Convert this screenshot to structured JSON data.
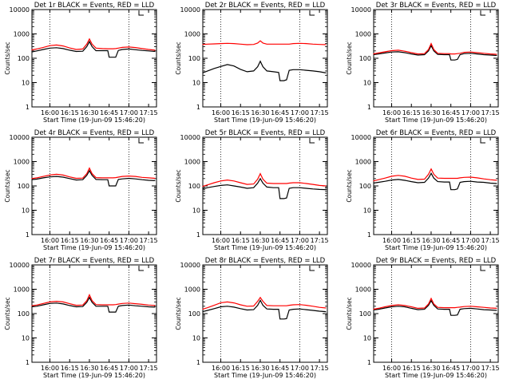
{
  "figure": {
    "ylabel": "Counts/sec",
    "xlabel": "Start Time (19-Jun-09 15:46:20)",
    "x_ticks": [
      "16:00",
      "16:15",
      "16:30",
      "16:45",
      "17:00",
      "17:15"
    ],
    "y_ticks": [
      "1",
      "10",
      "100",
      "1000",
      "10000"
    ],
    "ylim": [
      1,
      10000
    ],
    "y_scale": "log",
    "colors": {
      "events": "#000000",
      "lld": "#ff0000"
    }
  },
  "chart_data": [
    {
      "type": "line",
      "title": "Det 1r BLACK = Events, RED = LLD",
      "x": [
        "15:46",
        "15:50",
        "15:55",
        "16:00",
        "16:05",
        "16:10",
        "16:15",
        "16:20",
        "16:25",
        "16:28",
        "16:30",
        "16:32",
        "16:35",
        "16:40",
        "16:44",
        "16:45",
        "16:48",
        "16:50",
        "16:52",
        "16:55",
        "17:00",
        "17:05",
        "17:10",
        "17:15",
        "17:20"
      ],
      "series": [
        {
          "name": "Events",
          "values": [
            180,
            200,
            230,
            260,
            270,
            250,
            215,
            190,
            195,
            300,
            480,
            300,
            205,
            205,
            205,
            110,
            110,
            110,
            210,
            230,
            240,
            225,
            210,
            200,
            190
          ]
        },
        {
          "name": "LLD",
          "values": [
            220,
            240,
            280,
            330,
            350,
            320,
            265,
            230,
            240,
            380,
            620,
            380,
            260,
            250,
            245,
            245,
            245,
            250,
            260,
            280,
            290,
            275,
            250,
            230,
            215
          ]
        }
      ]
    },
    {
      "type": "line",
      "title": "Det 2r BLACK = Events, RED = LLD",
      "x": [
        "15:46",
        "15:50",
        "15:55",
        "16:00",
        "16:05",
        "16:10",
        "16:15",
        "16:20",
        "16:25",
        "16:28",
        "16:30",
        "16:32",
        "16:35",
        "16:40",
        "16:44",
        "16:45",
        "16:48",
        "16:50",
        "16:52",
        "16:55",
        "17:00",
        "17:05",
        "17:10",
        "17:15",
        "17:20"
      ],
      "series": [
        {
          "name": "Events",
          "values": [
            25,
            30,
            38,
            46,
            55,
            48,
            35,
            28,
            30,
            45,
            75,
            45,
            30,
            28,
            26,
            12,
            12,
            13,
            32,
            34,
            34,
            32,
            30,
            28,
            25
          ]
        },
        {
          "name": "LLD",
          "values": [
            370,
            380,
            390,
            400,
            410,
            400,
            380,
            360,
            370,
            420,
            520,
            420,
            380,
            380,
            380,
            380,
            380,
            380,
            380,
            400,
            410,
            400,
            380,
            370,
            360
          ]
        }
      ]
    },
    {
      "type": "line",
      "title": "Det 3r BLACK = Events, RED = LLD",
      "x": [
        "15:46",
        "15:50",
        "15:55",
        "16:00",
        "16:05",
        "16:10",
        "16:15",
        "16:20",
        "16:25",
        "16:28",
        "16:30",
        "16:32",
        "16:35",
        "16:40",
        "16:44",
        "16:45",
        "16:48",
        "16:50",
        "16:52",
        "16:55",
        "17:00",
        "17:05",
        "17:10",
        "17:15",
        "17:20"
      ],
      "series": [
        {
          "name": "Events",
          "values": [
            140,
            150,
            165,
            180,
            185,
            170,
            150,
            135,
            140,
            200,
            330,
            200,
            145,
            140,
            140,
            85,
            85,
            90,
            140,
            155,
            160,
            150,
            140,
            135,
            130
          ]
        },
        {
          "name": "LLD",
          "values": [
            150,
            165,
            185,
            205,
            215,
            195,
            170,
            150,
            155,
            230,
            400,
            230,
            160,
            155,
            155,
            150,
            150,
            155,
            160,
            175,
            180,
            170,
            160,
            150,
            145
          ]
        }
      ]
    },
    {
      "type": "line",
      "title": "Det 4r BLACK = Events, RED = LLD",
      "x": [
        "15:46",
        "15:50",
        "15:55",
        "16:00",
        "16:05",
        "16:10",
        "16:15",
        "16:20",
        "16:25",
        "16:28",
        "16:30",
        "16:32",
        "16:35",
        "16:40",
        "16:44",
        "16:45",
        "16:48",
        "16:50",
        "16:52",
        "16:55",
        "17:00",
        "17:05",
        "17:10",
        "17:15",
        "17:20"
      ],
      "series": [
        {
          "name": "Events",
          "values": [
            180,
            190,
            215,
            235,
            245,
            230,
            200,
            175,
            180,
            270,
            420,
            270,
            185,
            180,
            180,
            100,
            100,
            100,
            185,
            195,
            205,
            195,
            180,
            170,
            165
          ]
        },
        {
          "name": "LLD",
          "values": [
            200,
            215,
            245,
            280,
            300,
            280,
            235,
            205,
            210,
            320,
            540,
            320,
            220,
            215,
            215,
            215,
            215,
            220,
            230,
            245,
            255,
            245,
            225,
            215,
            205
          ]
        }
      ]
    },
    {
      "type": "line",
      "title": "Det 5r BLACK = Events, RED = LLD",
      "x": [
        "15:46",
        "15:50",
        "15:55",
        "16:00",
        "16:05",
        "16:10",
        "16:15",
        "16:20",
        "16:25",
        "16:28",
        "16:30",
        "16:32",
        "16:35",
        "16:40",
        "16:44",
        "16:45",
        "16:48",
        "16:50",
        "16:52",
        "16:55",
        "17:00",
        "17:05",
        "17:10",
        "17:15",
        "17:20"
      ],
      "series": [
        {
          "name": "Events",
          "values": [
            75,
            85,
            95,
            105,
            110,
            100,
            90,
            80,
            85,
            130,
            200,
            130,
            90,
            85,
            85,
            30,
            30,
            32,
            80,
            85,
            85,
            80,
            75,
            72,
            70
          ]
        },
        {
          "name": "LLD",
          "values": [
            95,
            110,
            135,
            160,
            175,
            160,
            135,
            115,
            120,
            190,
            320,
            190,
            130,
            125,
            125,
            125,
            125,
            125,
            130,
            135,
            135,
            125,
            115,
            105,
            100
          ]
        }
      ]
    },
    {
      "type": "line",
      "title": "Det 6r BLACK = Events, RED = LLD",
      "x": [
        "15:46",
        "15:50",
        "15:55",
        "16:00",
        "16:05",
        "16:10",
        "16:15",
        "16:20",
        "16:25",
        "16:28",
        "16:30",
        "16:32",
        "16:35",
        "16:40",
        "16:44",
        "16:45",
        "16:48",
        "16:50",
        "16:52",
        "16:55",
        "17:00",
        "17:05",
        "17:10",
        "17:15",
        "17:20"
      ],
      "series": [
        {
          "name": "Events",
          "values": [
            130,
            140,
            155,
            175,
            185,
            170,
            150,
            135,
            140,
            210,
            330,
            210,
            150,
            145,
            145,
            70,
            70,
            75,
            140,
            150,
            155,
            145,
            140,
            130,
            125
          ]
        },
        {
          "name": "LLD",
          "values": [
            160,
            180,
            210,
            250,
            270,
            250,
            210,
            185,
            190,
            300,
            500,
            300,
            210,
            205,
            205,
            205,
            205,
            205,
            215,
            225,
            230,
            215,
            195,
            180,
            170
          ]
        }
      ]
    },
    {
      "type": "line",
      "title": "Det 7r BLACK = Events, RED = LLD",
      "x": [
        "15:46",
        "15:50",
        "15:55",
        "16:00",
        "16:05",
        "16:10",
        "16:15",
        "16:20",
        "16:25",
        "16:28",
        "16:30",
        "16:32",
        "16:35",
        "16:40",
        "16:44",
        "16:45",
        "16:48",
        "16:50",
        "16:52",
        "16:55",
        "17:00",
        "17:05",
        "17:10",
        "17:15",
        "17:20"
      ],
      "series": [
        {
          "name": "Events",
          "values": [
            190,
            200,
            230,
            260,
            270,
            250,
            215,
            190,
            195,
            290,
            460,
            290,
            200,
            200,
            200,
            115,
            115,
            115,
            200,
            215,
            225,
            210,
            200,
            190,
            185
          ]
        },
        {
          "name": "LLD",
          "values": [
            210,
            225,
            260,
            300,
            320,
            300,
            255,
            220,
            225,
            340,
            590,
            340,
            235,
            230,
            230,
            230,
            230,
            235,
            245,
            260,
            270,
            255,
            240,
            225,
            215
          ]
        }
      ]
    },
    {
      "type": "line",
      "title": "Det 8r BLACK = Events, RED = LLD",
      "x": [
        "15:46",
        "15:50",
        "15:55",
        "16:00",
        "16:05",
        "16:10",
        "16:15",
        "16:20",
        "16:25",
        "16:28",
        "16:30",
        "16:32",
        "16:35",
        "16:40",
        "16:44",
        "16:45",
        "16:48",
        "16:50",
        "16:52",
        "16:55",
        "17:00",
        "17:05",
        "17:10",
        "17:15",
        "17:20"
      ],
      "series": [
        {
          "name": "Events",
          "values": [
            120,
            135,
            160,
            190,
            200,
            185,
            160,
            140,
            145,
            220,
            350,
            220,
            155,
            150,
            150,
            60,
            60,
            62,
            140,
            150,
            155,
            145,
            135,
            125,
            120
          ]
        },
        {
          "name": "LLD",
          "values": [
            150,
            175,
            220,
            280,
            300,
            275,
            230,
            200,
            205,
            320,
            460,
            320,
            215,
            210,
            210,
            210,
            210,
            210,
            220,
            230,
            235,
            220,
            200,
            180,
            170
          ]
        }
      ]
    },
    {
      "type": "line",
      "title": "Det 9r BLACK = Events, RED = LLD",
      "x": [
        "15:46",
        "15:50",
        "15:55",
        "16:00",
        "16:05",
        "16:10",
        "16:15",
        "16:20",
        "16:25",
        "16:28",
        "16:30",
        "16:32",
        "16:35",
        "16:40",
        "16:44",
        "16:45",
        "16:48",
        "16:50",
        "16:52",
        "16:55",
        "17:00",
        "17:05",
        "17:10",
        "17:15",
        "17:20"
      ],
      "series": [
        {
          "name": "Events",
          "values": [
            140,
            150,
            170,
            190,
            200,
            190,
            165,
            145,
            150,
            220,
            340,
            220,
            155,
            150,
            150,
            85,
            85,
            88,
            150,
            160,
            165,
            155,
            145,
            140,
            135
          ]
        },
        {
          "name": "LLD",
          "values": [
            150,
            165,
            190,
            215,
            230,
            215,
            190,
            165,
            170,
            250,
            420,
            250,
            180,
            175,
            175,
            175,
            175,
            180,
            185,
            195,
            200,
            190,
            180,
            170,
            165
          ]
        }
      ]
    }
  ]
}
